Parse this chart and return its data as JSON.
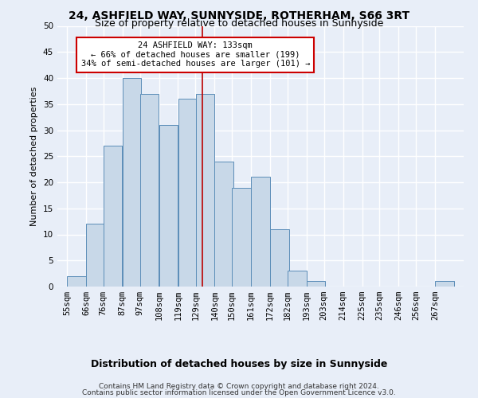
{
  "title1": "24, ASHFIELD WAY, SUNNYSIDE, ROTHERHAM, S66 3RT",
  "title2": "Size of property relative to detached houses in Sunnyside",
  "xlabel": "Distribution of detached houses by size in Sunnyside",
  "ylabel": "Number of detached properties",
  "categories": [
    "55sqm",
    "66sqm",
    "76sqm",
    "87sqm",
    "97sqm",
    "108sqm",
    "119sqm",
    "129sqm",
    "140sqm",
    "150sqm",
    "161sqm",
    "172sqm",
    "182sqm",
    "193sqm",
    "203sqm",
    "214sqm",
    "225sqm",
    "235sqm",
    "246sqm",
    "256sqm",
    "267sqm"
  ],
  "values": [
    2,
    12,
    27,
    40,
    37,
    31,
    36,
    37,
    24,
    19,
    21,
    11,
    3,
    1,
    0,
    0,
    0,
    0,
    0,
    0,
    1
  ],
  "bar_color": "#c8d8e8",
  "bar_edge_color": "#5b8db8",
  "ylim": [
    0,
    50
  ],
  "yticks": [
    0,
    5,
    10,
    15,
    20,
    25,
    30,
    35,
    40,
    45,
    50
  ],
  "red_line_x": 133,
  "bin_width": 11,
  "bin_starts": [
    55,
    66,
    76,
    87,
    97,
    108,
    119,
    129,
    140,
    150,
    161,
    172,
    182,
    193,
    203,
    214,
    225,
    235,
    246,
    256,
    267
  ],
  "annotation_box_text": "24 ASHFIELD WAY: 133sqm\n← 66% of detached houses are smaller (199)\n34% of semi-detached houses are larger (101) →",
  "annotation_box_color": "#ffffff",
  "annotation_box_edge_color": "#cc0000",
  "footer1": "Contains HM Land Registry data © Crown copyright and database right 2024.",
  "footer2": "Contains public sector information licensed under the Open Government Licence v3.0.",
  "background_color": "#e8eef8",
  "grid_color": "#ffffff",
  "title_fontsize": 10,
  "subtitle_fontsize": 9,
  "ylabel_fontsize": 8,
  "xlabel_fontsize": 9,
  "tick_fontsize": 7.5,
  "annotation_fontsize": 7.5,
  "footer_fontsize": 6.5
}
